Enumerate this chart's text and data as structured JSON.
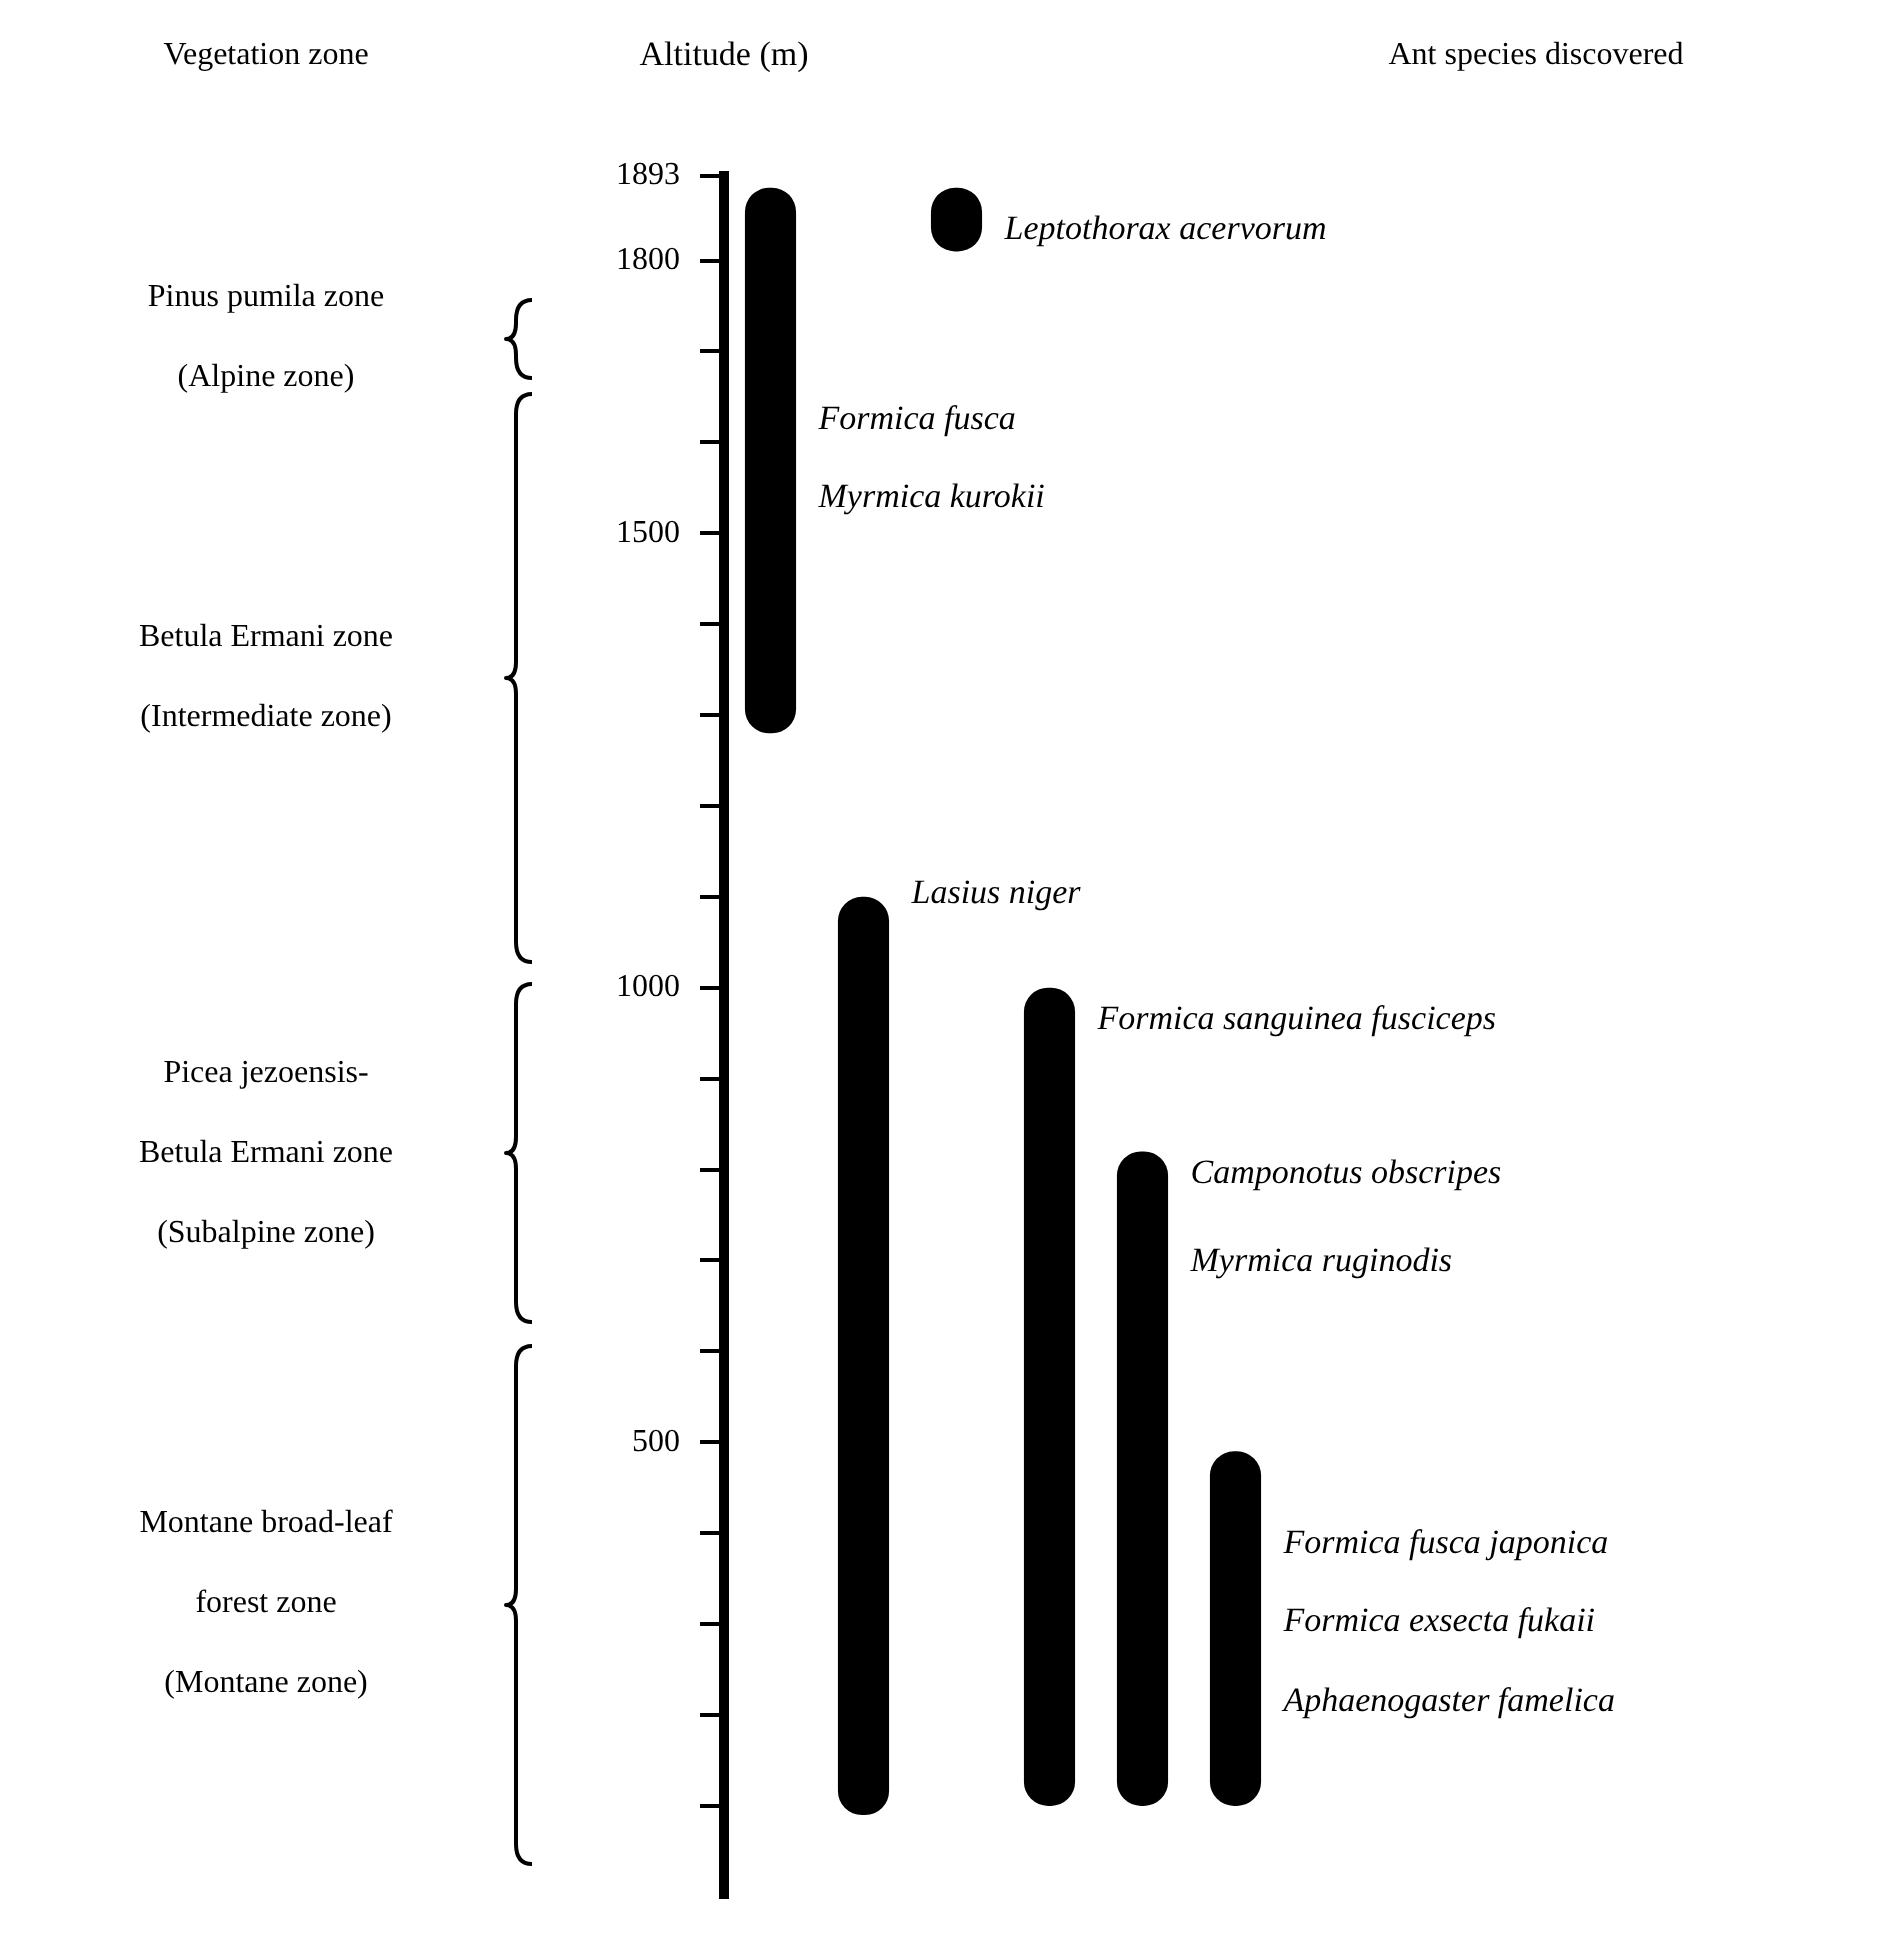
{
  "chart_data": {
    "type": "bar",
    "ylabel": "Altitude (m)",
    "categories": [
      null,
      null,
      null,
      null,
      null,
      null
    ],
    "series": [
      {
        "color": "#000000",
        "base": [
          1280,
          90,
          1810,
          100,
          100,
          100
        ],
        "values": [
          600,
          1010,
          70,
          900,
          720,
          390
        ]
      }
    ],
    "ylim": [
      0,
      1893
    ],
    "yticks": [
      {
        "value": 100,
        "label": null
      },
      {
        "value": 200,
        "label": null
      },
      {
        "value": 300,
        "label": null
      },
      {
        "value": 400,
        "label": null
      },
      500,
      {
        "value": 600,
        "label": null
      },
      {
        "value": 700,
        "label": null
      },
      {
        "value": 800,
        "label": null
      },
      {
        "value": 900,
        "label": null
      },
      1000,
      {
        "value": 1100,
        "label": null
      },
      {
        "value": 1200,
        "label": null
      },
      {
        "value": 1300,
        "label": null
      },
      {
        "value": 1400,
        "label": null
      },
      1500,
      {
        "value": 1600,
        "label": null
      },
      {
        "value": 1700,
        "label": null
      },
      1800,
      1893
    ],
    "annotations": [
      "Vegetation zone",
      "Ant species discovered",
      "Pinus pumila zone\n(Alpine zone)",
      "Betula Ermani zone\n(Intermediate zone)",
      "Picea jezoensis-\nBetula Ermani zone\n(Subalpine zone)",
      "Montane broad-leaf\nforest zone\n(Montane zone)",
      "Leptothorax acervorum",
      "Formica fusca",
      "Myrmica kurokii",
      "Lasius niger",
      "Formica sanguinea fusciceps",
      "Camponotus obscripes",
      "Myrmica ruginodis",
      "Formica fusca japonica",
      "Formica exsecta fukaii",
      "Aphaenogaster famelica"
    ],
    "grid": false,
    "legend": false,
    "tick_labels": "y"
  }
}
